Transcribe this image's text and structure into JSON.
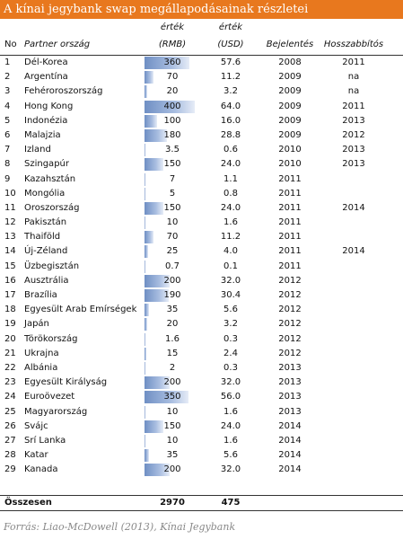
{
  "title": "A kínai jegybank swap megállapodásainak részletei",
  "headers": {
    "no": "No",
    "country": "Partner ország",
    "rmb_line1": "érték",
    "rmb_line2": "(RMB)",
    "usd_line1": "érték",
    "usd_line2": "(USD)",
    "announced": "Bejelentés",
    "extended": "Hosszabbítós"
  },
  "rows": [
    {
      "no": "1",
      "country": "Dél-Korea",
      "rmb": "360",
      "usd": "57.6",
      "announced": "2008",
      "extended": "2011"
    },
    {
      "no": "2",
      "country": "Argentína",
      "rmb": "70",
      "usd": "11.2",
      "announced": "2009",
      "extended": "na"
    },
    {
      "no": "3",
      "country": "Fehéroroszország",
      "rmb": "20",
      "usd": "3.2",
      "announced": "2009",
      "extended": "na"
    },
    {
      "no": "4",
      "country": "Hong Kong",
      "rmb": "400",
      "usd": "64.0",
      "announced": "2009",
      "extended": "2011"
    },
    {
      "no": "5",
      "country": "Indonézia",
      "rmb": "100",
      "usd": "16.0",
      "announced": "2009",
      "extended": "2013"
    },
    {
      "no": "6",
      "country": "Malajzia",
      "rmb": "180",
      "usd": "28.8",
      "announced": "2009",
      "extended": "2012"
    },
    {
      "no": "7",
      "country": "Izland",
      "rmb": "3.5",
      "usd": "0.6",
      "announced": "2010",
      "extended": "2013"
    },
    {
      "no": "8",
      "country": "Szingapúr",
      "rmb": "150",
      "usd": "24.0",
      "announced": "2010",
      "extended": "2013"
    },
    {
      "no": "9",
      "country": "Kazahsztán",
      "rmb": "7",
      "usd": "1.1",
      "announced": "2011",
      "extended": ""
    },
    {
      "no": "10",
      "country": "Mongólia",
      "rmb": "5",
      "usd": "0.8",
      "announced": "2011",
      "extended": ""
    },
    {
      "no": "11",
      "country": "Oroszország",
      "rmb": "150",
      "usd": "24.0",
      "announced": "2011",
      "extended": "2014"
    },
    {
      "no": "12",
      "country": "Pakisztán",
      "rmb": "10",
      "usd": "1.6",
      "announced": "2011",
      "extended": ""
    },
    {
      "no": "13",
      "country": "Thaiföld",
      "rmb": "70",
      "usd": "11.2",
      "announced": "2011",
      "extended": ""
    },
    {
      "no": "14",
      "country": "Új-Zéland",
      "rmb": "25",
      "usd": "4.0",
      "announced": "2011",
      "extended": "2014"
    },
    {
      "no": "15",
      "country": "Üzbegisztán",
      "rmb": "0.7",
      "usd": "0.1",
      "announced": "2011",
      "extended": ""
    },
    {
      "no": "16",
      "country": "Ausztrália",
      "rmb": "200",
      "usd": "32.0",
      "announced": "2012",
      "extended": ""
    },
    {
      "no": "17",
      "country": "Brazília",
      "rmb": "190",
      "usd": "30.4",
      "announced": "2012",
      "extended": ""
    },
    {
      "no": "18",
      "country": "Egyesült Arab Emírségek",
      "rmb": "35",
      "usd": "5.6",
      "announced": "2012",
      "extended": ""
    },
    {
      "no": "19",
      "country": "Japán",
      "rmb": "20",
      "usd": "3.2",
      "announced": "2012",
      "extended": ""
    },
    {
      "no": "20",
      "country": "Törökország",
      "rmb": "1.6",
      "usd": "0.3",
      "announced": "2012",
      "extended": ""
    },
    {
      "no": "21",
      "country": "Ukrajna",
      "rmb": "15",
      "usd": "2.4",
      "announced": "2012",
      "extended": ""
    },
    {
      "no": "22",
      "country": "Albánia",
      "rmb": "2",
      "usd": "0.3",
      "announced": "2013",
      "extended": ""
    },
    {
      "no": "23",
      "country": "Egyesült Királyság",
      "rmb": "200",
      "usd": "32.0",
      "announced": "2013",
      "extended": ""
    },
    {
      "no": "24",
      "country": "Euroövezet",
      "rmb": "350",
      "usd": "56.0",
      "announced": "2013",
      "extended": ""
    },
    {
      "no": "25",
      "country": "Magyarország",
      "rmb": "10",
      "usd": "1.6",
      "announced": "2013",
      "extended": ""
    },
    {
      "no": "26",
      "country": "Svájc",
      "rmb": "150",
      "usd": "24.0",
      "announced": "2014",
      "extended": ""
    },
    {
      "no": "27",
      "country": "Srí Lanka",
      "rmb": "10",
      "usd": "1.6",
      "announced": "2014",
      "extended": ""
    },
    {
      "no": "28",
      "country": "Katar",
      "rmb": "35",
      "usd": "5.6",
      "announced": "2014",
      "extended": ""
    },
    {
      "no": "29",
      "country": "Kanada",
      "rmb": "200",
      "usd": "32.0",
      "announced": "2014",
      "extended": ""
    }
  ],
  "total": {
    "label": "Összesen",
    "rmb": "2970",
    "usd": "475"
  },
  "data_bar_max": 400,
  "data_bar_color": "#6f8fc4",
  "title_bar_color": "#e8781e",
  "source": "Forrás: Liao-McDowell (2013), Kínai Jegybank"
}
